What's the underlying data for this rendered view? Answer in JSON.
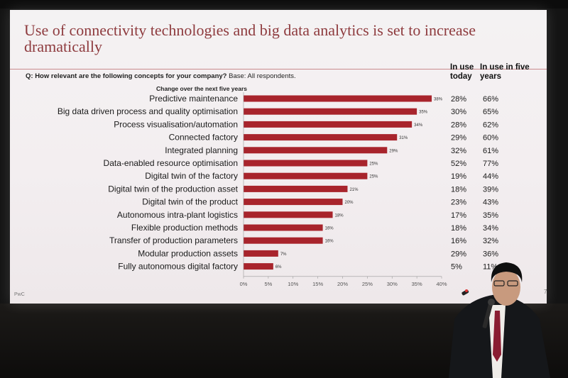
{
  "slide": {
    "title": "Use of connectivity technologies and big data analytics is set to increase dramatically",
    "question_prefix": "Q: How relevant are the following concepts for your company?",
    "question_suffix": "Base: All respondents.",
    "col_today": "In use today",
    "col_five_years": "In use in five years",
    "footer_brand": "PwC",
    "page_number": "7"
  },
  "colors": {
    "bar": "#a8242c",
    "title": "#8e3b3e",
    "background": "#f4f2f3"
  },
  "chart_data": {
    "type": "bar",
    "orientation": "horizontal",
    "title": "Change over the next five years",
    "categories": [
      "Predictive maintenance",
      "Big data driven process and quality optimisation",
      "Process visualisation/automation",
      "Connected factory",
      "Integrated planning",
      "Data-enabled resource optimisation",
      "Digital twin of the factory",
      "Digital twin of the production asset",
      "Digital twin of the product",
      "Autonomous intra-plant logistics",
      "Flexible production methods",
      "Transfer of production parameters",
      "Modular production assets",
      "Fully autonomous digital factory"
    ],
    "values": [
      38,
      35,
      34,
      31,
      29,
      25,
      25,
      21,
      20,
      18,
      16,
      16,
      7,
      6
    ],
    "value_labels": [
      "38%",
      "35%",
      "34%",
      "31%",
      "29%",
      "25%",
      "25%",
      "21%",
      "20%",
      "18%",
      "16%",
      "16%",
      "7%",
      "6%"
    ],
    "xlim": [
      0,
      40
    ],
    "xticks": [
      "0%",
      "5%",
      "10%",
      "15%",
      "20%",
      "25%",
      "30%",
      "35%",
      "40%"
    ],
    "in_use_today": [
      "28%",
      "30%",
      "28%",
      "29%",
      "32%",
      "52%",
      "19%",
      "18%",
      "23%",
      "17%",
      "18%",
      "16%",
      "29%",
      "5%"
    ],
    "in_use_five_years": [
      "66%",
      "65%",
      "62%",
      "60%",
      "61%",
      "77%",
      "44%",
      "39%",
      "43%",
      "35%",
      "34%",
      "32%",
      "36%",
      "11%"
    ],
    "grid": false
  }
}
